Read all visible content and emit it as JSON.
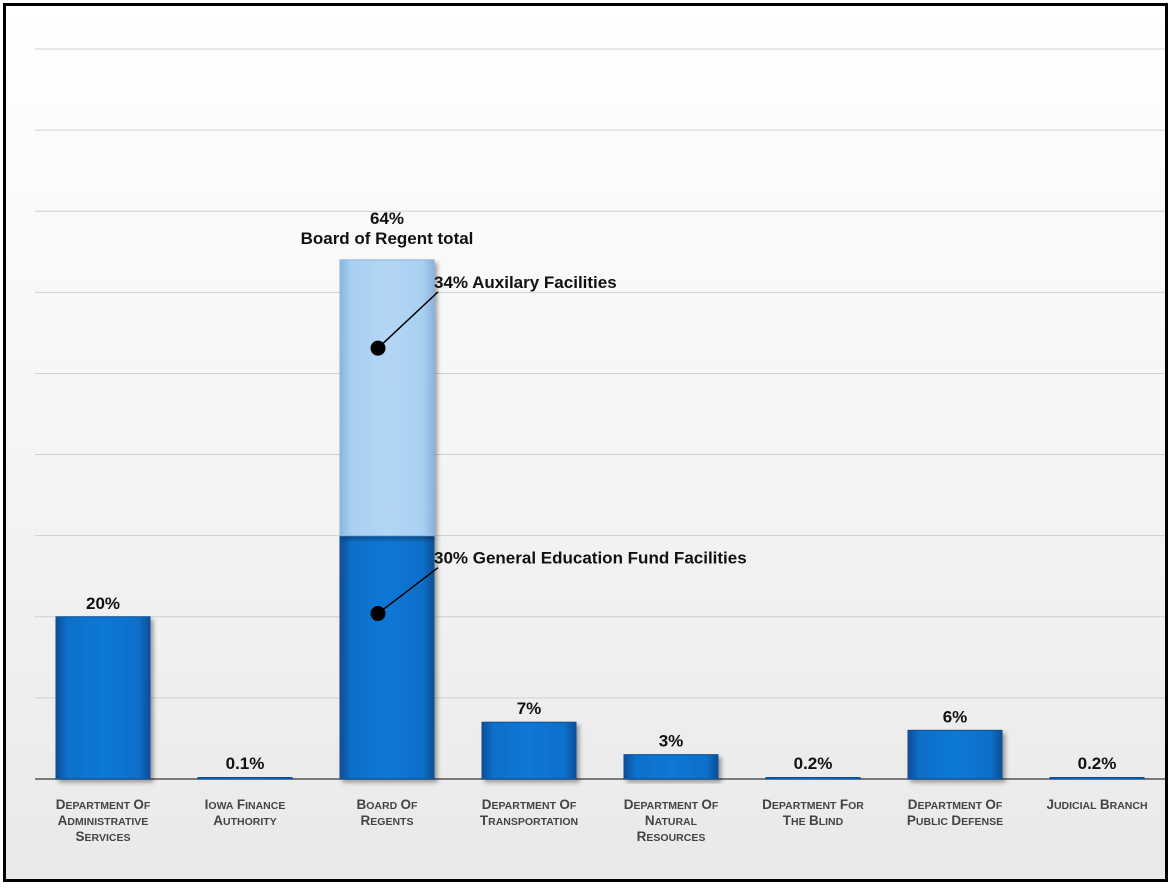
{
  "chart_data": {
    "type": "bar",
    "stacked": true,
    "categories": [
      "Department of Administrative Services",
      "Iowa Finance Authority",
      "Board of Regents",
      "Department of Transportation",
      "Department of Natural Resources",
      "Department for the Blind",
      "Department of Public Defense",
      "Judicial Branch"
    ],
    "category_lines": [
      [
        "Department of",
        "Administrative",
        "Services"
      ],
      [
        "Iowa Finance",
        "Authority"
      ],
      [
        "Board of",
        "Regents"
      ],
      [
        "Department of",
        "Transportation"
      ],
      [
        "Department of",
        "Natural",
        "Resources"
      ],
      [
        "Department for",
        "the Blind"
      ],
      [
        "Department of",
        "Public Defense"
      ],
      [
        "Judicial Branch"
      ]
    ],
    "series": [
      {
        "values": [
          20,
          0.1,
          30,
          7,
          3,
          0.2,
          6,
          0.2
        ],
        "color": "#0b6fc9"
      },
      {
        "values": [
          0,
          0,
          34,
          0,
          0,
          0,
          0,
          0
        ],
        "color": "#a9cff2"
      }
    ],
    "data_labels": [
      "20%",
      "0.1%",
      "",
      "7%",
      "3%",
      "0.2%",
      "6%",
      "0.2%"
    ],
    "total_annotation": {
      "value_label": "64%",
      "text": "Board of Regent total"
    },
    "segment_annotations": [
      {
        "category_index": 2,
        "series_index": 1,
        "text": "34% Auxilary Facilities"
      },
      {
        "category_index": 2,
        "series_index": 0,
        "text": "30% General Education Fund Facilities"
      }
    ],
    "ylim": [
      0,
      90
    ],
    "grid": true,
    "xlabel": "",
    "ylabel": "",
    "title": ""
  }
}
